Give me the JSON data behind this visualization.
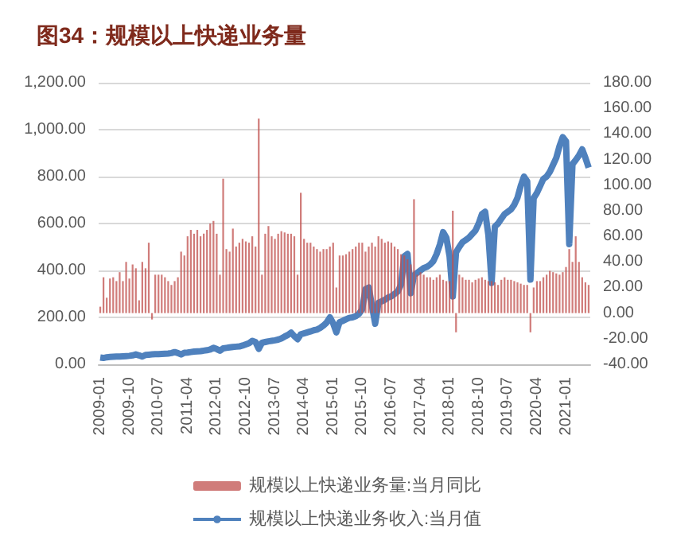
{
  "chart_data": {
    "type": "bar",
    "title": "图34：规模以上快递业务量",
    "categories": [
      "2009-01",
      null,
      null,
      null,
      null,
      null,
      null,
      null,
      null,
      "2009-10",
      null,
      null,
      null,
      null,
      null,
      null,
      null,
      null,
      "2010-07",
      null,
      null,
      null,
      null,
      null,
      null,
      null,
      null,
      "2011-04",
      null,
      null,
      null,
      null,
      null,
      null,
      null,
      null,
      "2012-01",
      null,
      null,
      null,
      null,
      null,
      null,
      null,
      null,
      "2012-10",
      null,
      null,
      null,
      null,
      null,
      null,
      null,
      null,
      "2013-07",
      null,
      null,
      null,
      null,
      null,
      null,
      null,
      null,
      "2014-04",
      null,
      null,
      null,
      null,
      null,
      null,
      null,
      null,
      "2015-01",
      null,
      null,
      null,
      null,
      null,
      null,
      null,
      null,
      "2015-10",
      null,
      null,
      null,
      null,
      null,
      null,
      null,
      null,
      "2016-07",
      null,
      null,
      null,
      null,
      null,
      null,
      null,
      null,
      "2017-04",
      null,
      null,
      null,
      null,
      null,
      null,
      null,
      null,
      "2018-01",
      null,
      null,
      null,
      null,
      null,
      null,
      null,
      null,
      "2018-10",
      null,
      null,
      null,
      null,
      null,
      null,
      null,
      null,
      "2019-07",
      null,
      null,
      null,
      null,
      null,
      null,
      null,
      null,
      "2020-04",
      null,
      null,
      null,
      null,
      null,
      null,
      null,
      null,
      "2021-01",
      null,
      null,
      null,
      null,
      null,
      null,
      null
    ],
    "series": [
      {
        "name": "规模以上快递业务量:当月同比",
        "axis": "y2",
        "color": "#c0504d",
        "values": [
          5,
          28,
          12,
          27,
          28,
          25,
          32,
          25,
          40,
          27,
          38,
          35,
          10,
          40,
          35,
          55,
          -5,
          30,
          30,
          30,
          28,
          25,
          22,
          25,
          28,
          48,
          45,
          60,
          65,
          62,
          65,
          60,
          62,
          65,
          70,
          72,
          62,
          30,
          105,
          50,
          48,
          66,
          52,
          55,
          58,
          56,
          55,
          60,
          52,
          152,
          30,
          62,
          68,
          60,
          58,
          62,
          64,
          63,
          62,
          62,
          60,
          30,
          94,
          58,
          55,
          55,
          52,
          50,
          48,
          50,
          50,
          52,
          55,
          20,
          45,
          45,
          46,
          48,
          50,
          52,
          55,
          55,
          48,
          52,
          55,
          52,
          60,
          58,
          55,
          56,
          55,
          52,
          50,
          46,
          45,
          42,
          38,
          89,
          30,
          32,
          30,
          28,
          28,
          26,
          28,
          30,
          26,
          25,
          25,
          80,
          -15,
          30,
          28,
          26,
          26,
          24,
          26,
          27,
          28,
          26,
          25,
          25,
          24,
          22,
          26,
          28,
          26,
          26,
          25,
          24,
          23,
          22,
          22,
          -15,
          20,
          25,
          25,
          28,
          30,
          33,
          32,
          31,
          30,
          32,
          36,
          50,
          40,
          60,
          40,
          28,
          24,
          22
        ]
      },
      {
        "name": "规模以上快递业务收入:当月值",
        "type": "line",
        "color": "#4f81bd",
        "values": [
          29,
          27,
          30,
          31,
          32,
          33,
          33,
          34,
          35,
          36,
          38,
          42,
          38,
          33,
          40,
          41,
          42,
          43,
          43,
          44,
          45,
          46,
          48,
          52,
          48,
          42,
          49,
          50,
          52,
          54,
          55,
          56,
          58,
          60,
          63,
          70,
          65,
          58,
          68,
          70,
          72,
          74,
          75,
          76,
          80,
          85,
          90,
          100,
          95,
          66,
          92,
          95,
          98,
          100,
          102,
          105,
          110,
          118,
          125,
          135,
          120,
          107,
          128,
          132,
          136,
          140,
          145,
          148,
          155,
          165,
          178,
          200,
          175,
          136,
          180,
          185,
          192,
          198,
          200,
          205,
          215,
          235,
          320,
          327,
          250,
          173,
          262,
          268,
          275,
          285,
          290,
          300,
          310,
          340,
          460,
          470,
          303,
          380,
          390,
          400,
          410,
          415,
          425,
          440,
          470,
          510,
          563,
          540,
          460,
          289,
          477,
          500,
          520,
          530,
          540,
          555,
          570,
          600,
          640,
          650,
          550,
          347,
          587,
          600,
          620,
          640,
          650,
          660,
          680,
          710,
          760,
          800,
          780,
          361,
          708,
          730,
          760,
          790,
          800,
          820,
          850,
          880,
          930,
          968,
          950,
          512,
          853,
          870,
          890,
          916,
          880,
          838
        ]
      }
    ],
    "ylim": [
      0,
      1200
    ],
    "yticks": [
      {
        "value": 0,
        "label": "0.00"
      },
      {
        "value": 200,
        "label": "200.00"
      },
      {
        "value": 400,
        "label": "400.00"
      },
      {
        "value": 600,
        "label": "600.00"
      },
      {
        "value": 800,
        "label": "800.00"
      },
      {
        "value": 1000,
        "label": "1,000.00"
      },
      {
        "value": 1200,
        "label": "1,200.00"
      }
    ],
    "y2lim": [
      -40,
      180
    ],
    "y2ticks": [
      {
        "value": -40,
        "label": "-40.00"
      },
      {
        "value": -20,
        "label": "-20.00"
      },
      {
        "value": 0,
        "label": "0.00"
      },
      {
        "value": 20,
        "label": "20.00"
      },
      {
        "value": 40,
        "label": "40.00"
      },
      {
        "value": 60,
        "label": "60.00"
      },
      {
        "value": 80,
        "label": "80.00"
      },
      {
        "value": 100,
        "label": "100.00"
      },
      {
        "value": 120,
        "label": "120.00"
      },
      {
        "value": 140,
        "label": "140.00"
      },
      {
        "value": 160,
        "label": "160.00"
      },
      {
        "value": 180,
        "label": "180.00"
      }
    ],
    "grid": "y",
    "legend": "bottom",
    "marker": "none"
  }
}
